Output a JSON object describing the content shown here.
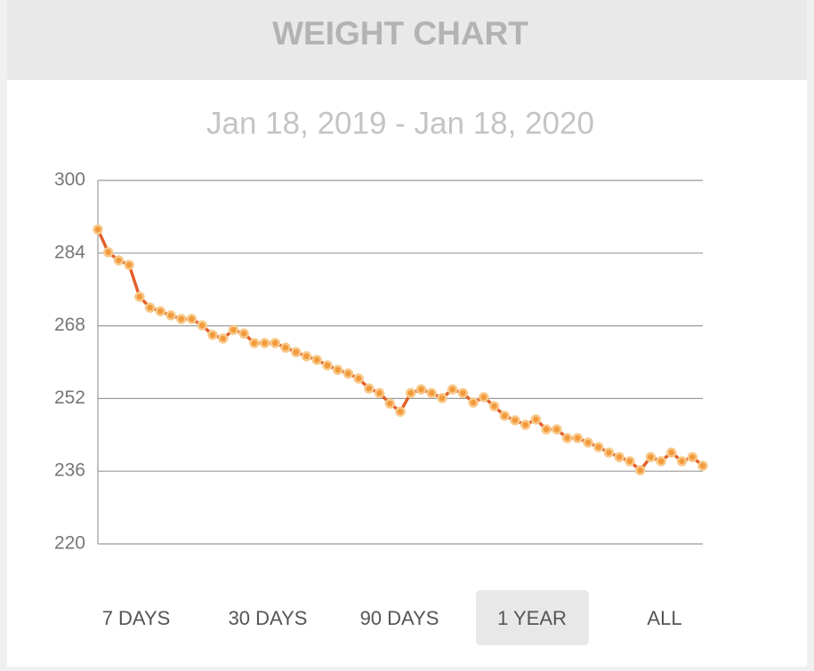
{
  "header": {
    "title": "WEIGHT CHART"
  },
  "chart_data": {
    "type": "line",
    "subtitle": "Jan 18, 2019 - Jan 18, 2020",
    "values": [
      289.2,
      284.2,
      282.4,
      281.4,
      274.4,
      272.0,
      271.2,
      270.3,
      269.5,
      269.5,
      268.1,
      266.0,
      265.2,
      267.1,
      266.3,
      264.2,
      264.2,
      264.2,
      263.2,
      262.2,
      261.3,
      260.5,
      259.3,
      258.3,
      257.5,
      256.4,
      254.2,
      253.2,
      250.9,
      249.1,
      253.2,
      254.0,
      253.2,
      252.1,
      254.0,
      253.2,
      251.1,
      252.3,
      250.3,
      248.2,
      247.2,
      246.2,
      247.4,
      245.2,
      245.2,
      243.3,
      243.3,
      242.3,
      241.3,
      240.1,
      239.1,
      238.2,
      236.2,
      239.1,
      238.2,
      240.1,
      238.2,
      239.1,
      237.2
    ],
    "color": "#e35f2a",
    "marker_color": "#f29a3c",
    "ylim": [
      220,
      300
    ],
    "yticks": [
      220,
      236,
      252,
      268,
      284,
      300
    ],
    "grid": true
  },
  "range_buttons": {
    "labels": [
      "7 DAYS",
      "30 DAYS",
      "90 DAYS",
      "1 YEAR",
      "ALL"
    ],
    "selected_index": 3
  }
}
